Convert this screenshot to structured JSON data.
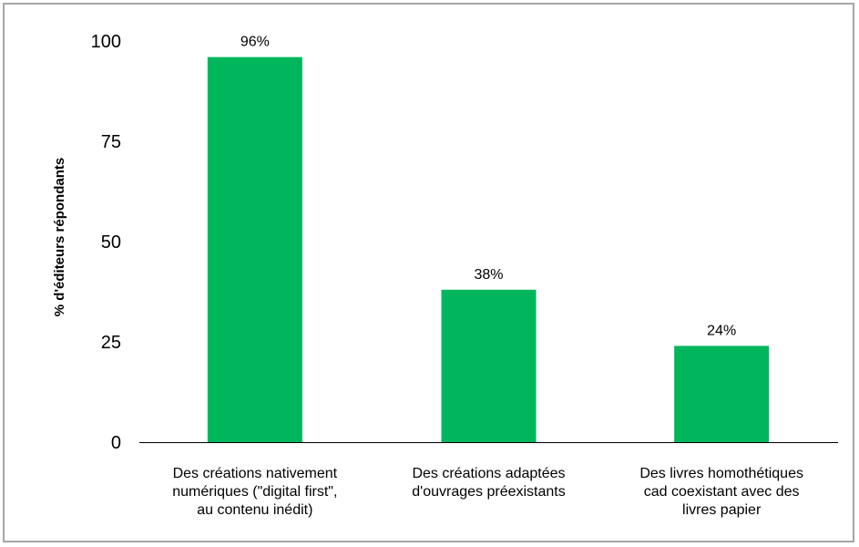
{
  "chart_data": {
    "type": "bar",
    "title": "",
    "xlabel": "",
    "ylabel": "% d'éditeurs répondants",
    "ylim": [
      0,
      100
    ],
    "yticks": [
      "0",
      "25",
      "50",
      "75",
      "100"
    ],
    "grid": false,
    "categories": [
      [
        "Des créations nativement",
        "numériques (\"digital first\",",
        "au contenu inédit)"
      ],
      [
        "Des créations adaptées",
        "d'ouvrages préexistants"
      ],
      [
        "Des livres homothétiques",
        "cad coexistant avec des",
        "livres papier"
      ]
    ],
    "values": [
      96,
      38,
      24
    ],
    "data_labels": [
      "96%",
      "38%",
      "24%"
    ],
    "bar_color": "#00b65d",
    "axis_color": "#000000"
  }
}
